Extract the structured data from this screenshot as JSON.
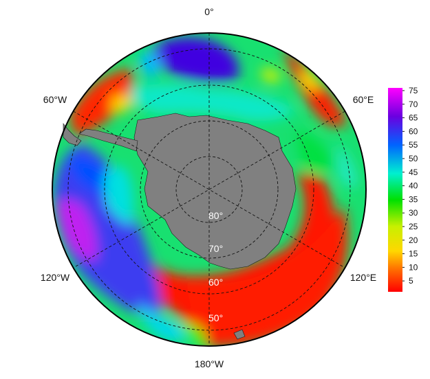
{
  "map": {
    "projection": "south polar stereographic",
    "longitude_labels": {
      "top": "0°",
      "upper_left": "60°W",
      "upper_right": "60°E",
      "lower_left": "120°W",
      "lower_right": "120°E",
      "bottom": "180°W"
    },
    "latitude_labels": [
      "80°",
      "70°",
      "60°",
      "50°"
    ],
    "land_color": "#808080",
    "frame_color": "#000000",
    "graticule_style": "dashed"
  },
  "colorbar": {
    "ticks": [
      "5",
      "10",
      "15",
      "20",
      "25",
      "30",
      "35",
      "40",
      "45",
      "50",
      "55",
      "60",
      "65",
      "70",
      "75"
    ],
    "min": 1,
    "max": 76,
    "colors": [
      "#ff0000",
      "#ff6400",
      "#ffd700",
      "#c8f000",
      "#00e000",
      "#00f0d0",
      "#0064ff",
      "#6a00e0",
      "#ff00ff"
    ]
  }
}
